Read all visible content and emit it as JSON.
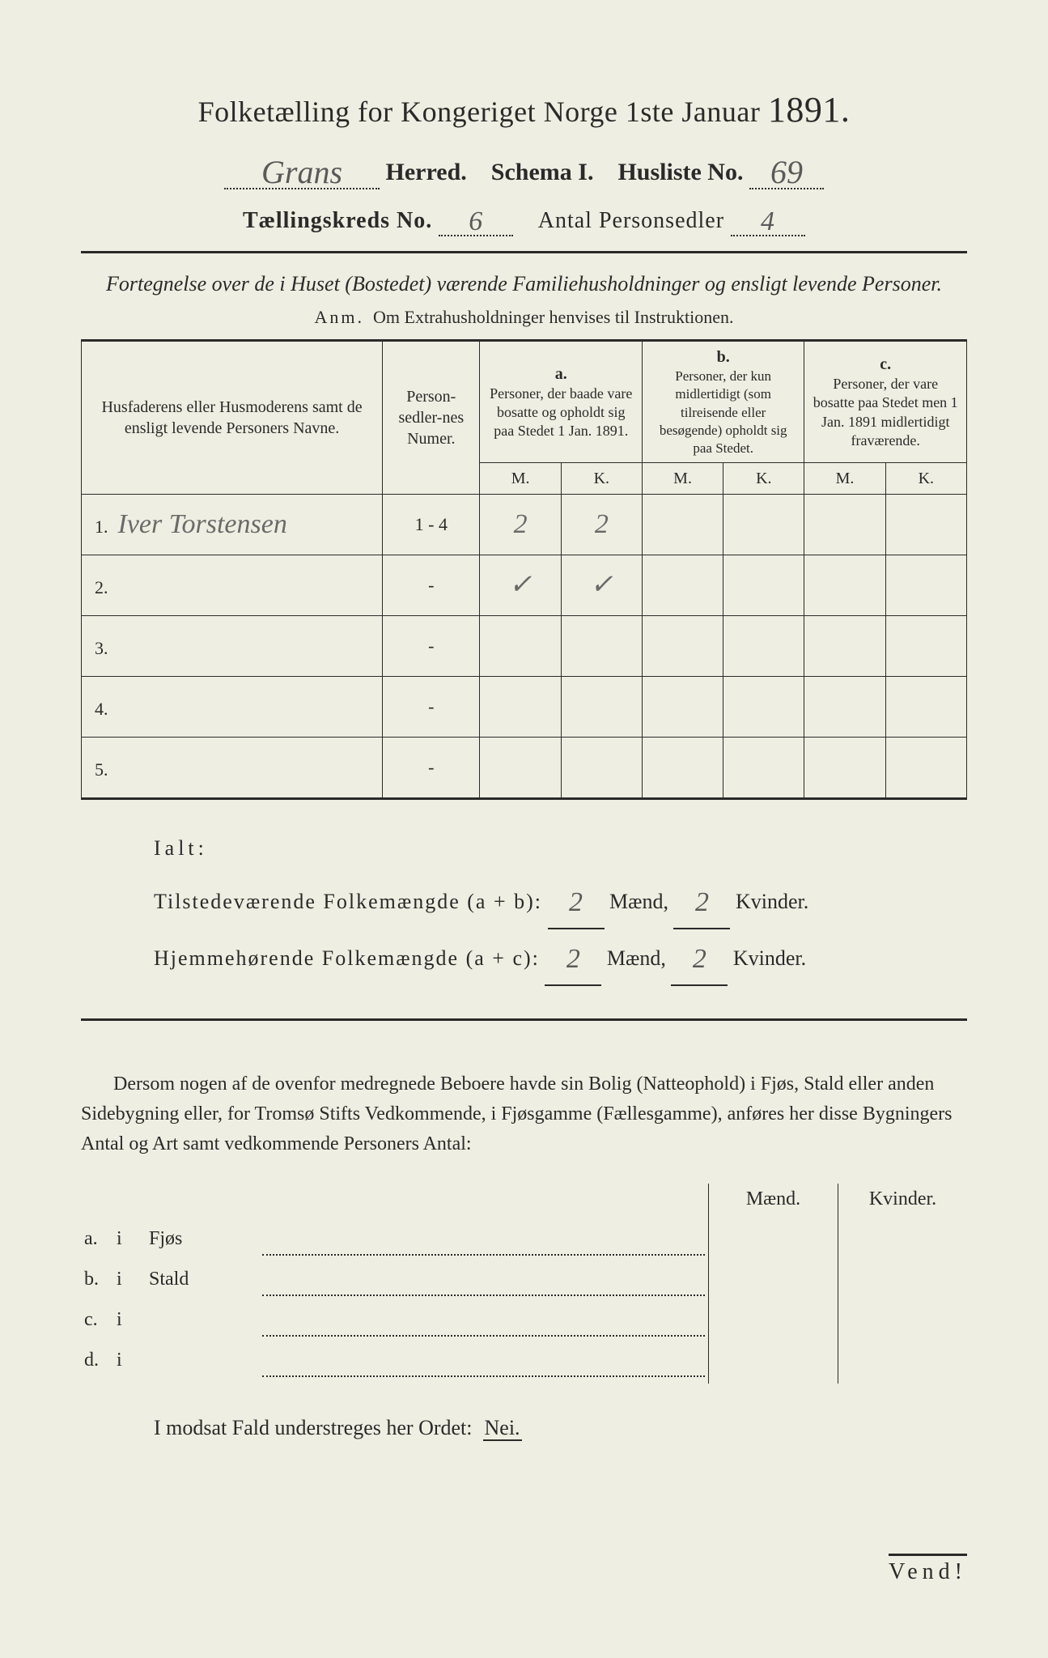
{
  "title": {
    "main": "Folketælling for Kongeriget Norge 1ste Januar",
    "year": "1891."
  },
  "header": {
    "herred_hand": "Grans",
    "herred_label": "Herred.",
    "schema_label": "Schema I.",
    "husliste_label": "Husliste No.",
    "husliste_no_hand": "69",
    "kreds_label": "Tællingskreds No.",
    "kreds_no_hand": "6",
    "antal_label": "Antal Personsedler",
    "antal_hand": "4"
  },
  "fortegnelse": "Fortegnelse over de i Huset (Bostedet) værende Familiehusholdninger og ensligt levende Personer.",
  "anm": {
    "prefix": "Anm.",
    "text": "Om Extrahusholdninger henvises til Instruktionen."
  },
  "table": {
    "col_names": "Husfaderens eller Husmoderens samt de ensligt levende Personers Navne.",
    "col_numer": "Person-sedler-nes Numer.",
    "col_a_label": "a.",
    "col_a_text": "Personer, der baade vare bosatte og opholdt sig paa Stedet 1 Jan. 1891.",
    "col_b_label": "b.",
    "col_b_text": "Personer, der kun midlertidigt (som tilreisende eller besøgende) opholdt sig paa Stedet.",
    "col_c_label": "c.",
    "col_c_text": "Personer, der vare bosatte paa Stedet men 1 Jan. 1891 midlertidigt fraværende.",
    "m": "M.",
    "k": "K.",
    "rows": [
      {
        "n": "1.",
        "name": "Iver Torstensen",
        "numer": "1 - 4",
        "a_m": "2",
        "a_k": "2",
        "b_m": "",
        "b_k": "",
        "c_m": "",
        "c_k": ""
      },
      {
        "n": "2.",
        "name": "",
        "numer": "-",
        "a_m": "✓",
        "a_k": "✓",
        "b_m": "",
        "b_k": "",
        "c_m": "",
        "c_k": ""
      },
      {
        "n": "3.",
        "name": "",
        "numer": "-",
        "a_m": "",
        "a_k": "",
        "b_m": "",
        "b_k": "",
        "c_m": "",
        "c_k": ""
      },
      {
        "n": "4.",
        "name": "",
        "numer": "-",
        "a_m": "",
        "a_k": "",
        "b_m": "",
        "b_k": "",
        "c_m": "",
        "c_k": ""
      },
      {
        "n": "5.",
        "name": "",
        "numer": "-",
        "a_m": "",
        "a_k": "",
        "b_m": "",
        "b_k": "",
        "c_m": "",
        "c_k": ""
      }
    ]
  },
  "totals": {
    "ialt": "Ialt:",
    "line1_label": "Tilstedeværende Folkemængde (a + b):",
    "line1_m": "2",
    "line1_k": "2",
    "line2_label": "Hjemmehørende Folkemængde (a + c):",
    "line2_m": "2",
    "line2_k": "2",
    "maend": "Mænd,",
    "kvinder": "Kvinder."
  },
  "dersom": "Dersom nogen af de ovenfor medregnede Beboere havde sin Bolig (Natteophold) i Fjøs, Stald eller anden Sidebygning eller, for Tromsø Stifts Vedkommende, i Fjøsgamme (Fællesgamme), anføres her disse Bygningers Antal og Art samt vedkommende Personers Antal:",
  "buildings": {
    "hdr_m": "Mænd.",
    "hdr_k": "Kvinder.",
    "rows": [
      {
        "letter": "a.",
        "i": "i",
        "type": "Fjøs"
      },
      {
        "letter": "b.",
        "i": "i",
        "type": "Stald"
      },
      {
        "letter": "c.",
        "i": "i",
        "type": ""
      },
      {
        "letter": "d.",
        "i": "i",
        "type": ""
      }
    ]
  },
  "modsat": {
    "text": "I modsat Fald understreges her Ordet:",
    "nei": "Nei."
  },
  "vend": "Vend!"
}
